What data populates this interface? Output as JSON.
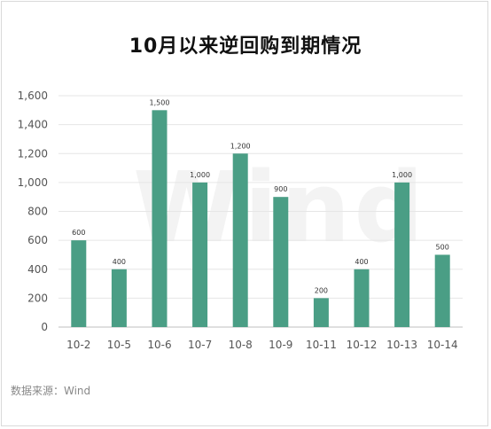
{
  "source": "数据来源：Wind",
  "watermark": "Wind",
  "colors": {
    "bar": "#4a9e85",
    "grid": "#e6e6e6",
    "tick": "#555555"
  },
  "chart_data": {
    "type": "bar",
    "title": "10月以来逆回购到期情况",
    "categories": [
      "10-2",
      "10-5",
      "10-6",
      "10-7",
      "10-8",
      "10-9",
      "10-11",
      "10-12",
      "10-13",
      "10-14"
    ],
    "values": [
      600,
      400,
      1500,
      1000,
      1200,
      900,
      200,
      400,
      1000,
      500
    ],
    "value_labels": [
      "600",
      "400",
      "1,500",
      "1,000",
      "1,200",
      "900",
      "200",
      "400",
      "1,000",
      "500"
    ],
    "yticks": [
      "0",
      "200",
      "400",
      "600",
      "800",
      "1,000",
      "1,200",
      "1,400",
      "1,600"
    ],
    "ylim": [
      0,
      1600
    ],
    "grid": true,
    "legend": "none"
  }
}
